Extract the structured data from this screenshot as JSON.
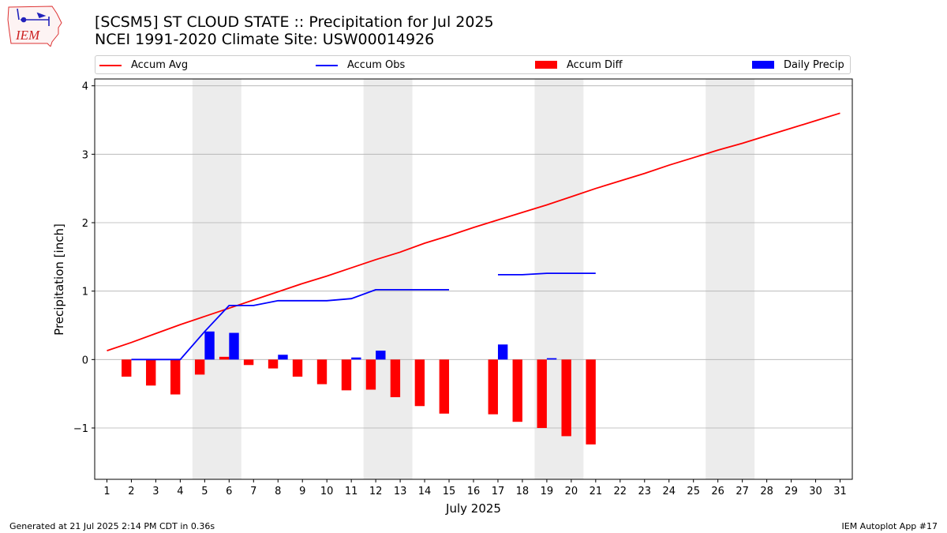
{
  "header": {
    "logo_text": "IEM",
    "title_line1": "[SCSM5] ST CLOUD STATE :: Precipitation for Jul 2025",
    "title_line2": "NCEI 1991-2020 Climate Site: USW00014926"
  },
  "colors": {
    "accum_avg": "#ff0000",
    "accum_obs": "#0000ff",
    "accum_diff": "#ff0000",
    "daily_precip": "#0000ff",
    "weekend_shade": "#ececec",
    "grid": "#b0b0b0"
  },
  "footer": {
    "generated": "Generated at 21 Jul 2025 2:14 PM CDT in 0.36s",
    "app": "IEM Autoplot App #17"
  },
  "chart_data": {
    "type": "bar",
    "xlabel": "July 2025",
    "ylabel": "Precipitation [inch]",
    "xlim": [
      0.5,
      31.5
    ],
    "ylim": [
      -1.75,
      4.1
    ],
    "grid": true,
    "legend_placement": "top",
    "days": [
      1,
      2,
      3,
      4,
      5,
      6,
      7,
      8,
      9,
      10,
      11,
      12,
      13,
      14,
      15,
      16,
      17,
      18,
      19,
      20,
      21,
      22,
      23,
      24,
      25,
      26,
      27,
      28,
      29,
      30,
      31
    ],
    "yticks": [
      -1,
      0,
      1,
      2,
      3,
      4
    ],
    "ytick_labels": [
      "−1",
      "0",
      "1",
      "2",
      "3",
      "4"
    ],
    "weekend_shading": [
      [
        4.5,
        6.5
      ],
      [
        11.5,
        13.5
      ],
      [
        18.5,
        20.5
      ],
      [
        25.5,
        27.5
      ]
    ],
    "series": [
      {
        "name": "Accum Avg",
        "kind": "line",
        "x": [
          1,
          2,
          3,
          4,
          5,
          6,
          7,
          8,
          9,
          10,
          11,
          12,
          13,
          14,
          15,
          16,
          17,
          18,
          19,
          20,
          21,
          22,
          23,
          24,
          25,
          26,
          27,
          28,
          29,
          30,
          31
        ],
        "values": [
          0.13,
          0.25,
          0.38,
          0.51,
          0.63,
          0.75,
          0.87,
          0.99,
          1.11,
          1.22,
          1.34,
          1.46,
          1.57,
          1.7,
          1.81,
          1.93,
          2.04,
          2.15,
          2.26,
          2.38,
          2.5,
          2.61,
          2.72,
          2.84,
          2.95,
          3.06,
          3.16,
          3.27,
          3.38,
          3.49,
          3.6
        ]
      },
      {
        "name": "Accum Obs",
        "kind": "line",
        "x": [
          1,
          2,
          3,
          4,
          5,
          6,
          7,
          8,
          9,
          10,
          11,
          12,
          13,
          14,
          15,
          16,
          17,
          18,
          19,
          20,
          21
        ],
        "values": [
          null,
          0.0,
          0.0,
          0.0,
          0.41,
          0.79,
          0.79,
          0.86,
          0.86,
          0.86,
          0.89,
          1.02,
          1.02,
          1.02,
          1.02,
          null,
          1.24,
          1.24,
          1.26,
          1.26,
          1.26
        ]
      },
      {
        "name": "Accum Diff",
        "kind": "bar",
        "x": [
          2,
          3,
          4,
          5,
          6,
          7,
          8,
          9,
          10,
          11,
          12,
          13,
          14,
          15,
          17,
          18,
          19,
          20,
          21
        ],
        "values": [
          -0.25,
          -0.38,
          -0.51,
          -0.22,
          0.04,
          -0.08,
          -0.13,
          -0.25,
          -0.36,
          -0.45,
          -0.44,
          -0.55,
          -0.68,
          -0.79,
          -0.8,
          -0.91,
          -1.0,
          -1.12,
          -1.24
        ]
      },
      {
        "name": "Daily Precip",
        "kind": "bar",
        "x": [
          5,
          6,
          8,
          11,
          12,
          17,
          19
        ],
        "values": [
          0.41,
          0.39,
          0.07,
          0.03,
          0.13,
          0.22,
          0.02
        ]
      }
    ]
  }
}
